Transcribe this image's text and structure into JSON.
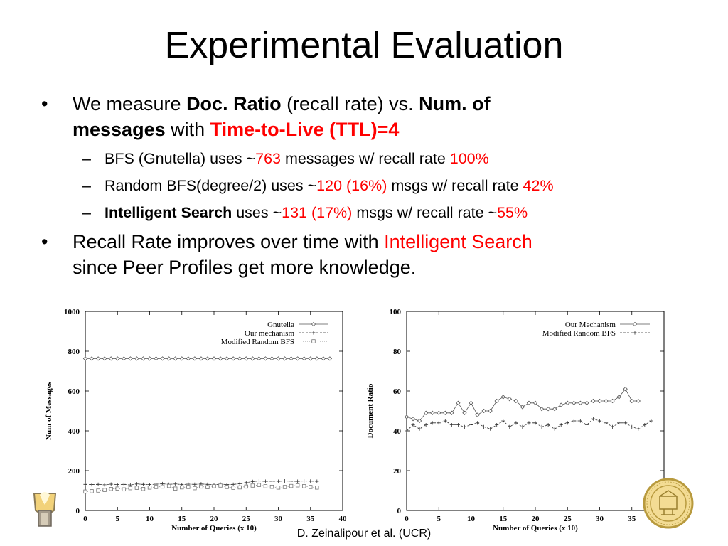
{
  "slide": {
    "title": "Experimental Evaluation",
    "footer": "D. Zeinalipour et al. (UCR)",
    "b1": {
      "t1": "We measure ",
      "t2": "Doc. Ratio",
      "t3": " (recall rate) vs. ",
      "t4": "Num. of",
      "t5": "messages",
      "t6": " with ",
      "t7": "Time-to-Live (TTL)=4"
    },
    "s1": {
      "t1": "BFS (Gnutella) uses ~",
      "t2": "763",
      "t3": " messages w/ recall rate ",
      "t4": "100%"
    },
    "s2": {
      "t1": "Random BFS(degree/2) uses ~",
      "t2": "120 (16%)",
      "t3": " msgs w/ recall rate ",
      "t4": "42%"
    },
    "s3": {
      "t1": "Intelligent Search",
      "t2": " uses ~",
      "t3": "131 (17%)",
      "t4": " msgs w/ recall rate ~",
      "t5": "55%"
    },
    "b2": {
      "t1": "Recall Rate improves over time with ",
      "t2": "Intelligent Search",
      "t3": "since Peer Profiles get more knowledge."
    },
    "bullet": "•",
    "dash": "–",
    "colors": {
      "highlight": "#ff0000",
      "text": "#000000",
      "background": "#ffffff"
    },
    "logo_left": "ucr-torch-logo",
    "seal_right": "university-seal"
  },
  "chart_data": [
    {
      "type": "line",
      "xlabel": "Number of Queries (x 10)",
      "ylabel": "Num of Messages",
      "xlim": [
        0,
        40
      ],
      "ylim": [
        0,
        1000
      ],
      "xticks": [
        0,
        5,
        10,
        15,
        20,
        25,
        30,
        35,
        40
      ],
      "yticks": [
        0,
        200,
        400,
        600,
        800,
        1000
      ],
      "legend_position": "top-right",
      "series": [
        {
          "name": "Gnutella",
          "marker": "diamond",
          "dash": "solid",
          "values": [
            763,
            763,
            763,
            763,
            763,
            763,
            763,
            763,
            763,
            763,
            763,
            763,
            763,
            763,
            763,
            763,
            763,
            763,
            763,
            763,
            763,
            763,
            763,
            763,
            763,
            763,
            763,
            763,
            763,
            763,
            763,
            763,
            763,
            763,
            763,
            763,
            763,
            763,
            763
          ]
        },
        {
          "name": "Our mechanism",
          "marker": "plus",
          "dash": "dashed",
          "values": [
            131,
            130,
            131,
            129,
            132,
            130,
            131,
            128,
            133,
            131,
            130,
            132,
            134,
            131,
            133,
            130,
            132,
            131,
            133,
            131,
            129,
            132,
            130,
            131,
            134,
            140,
            145,
            148,
            146,
            147,
            146,
            148,
            147,
            146,
            148,
            147,
            146
          ]
        },
        {
          "name": "Modified Random BFS",
          "marker": "square",
          "dash": "dotted",
          "values": [
            95,
            97,
            100,
            103,
            108,
            110,
            106,
            112,
            114,
            108,
            115,
            118,
            120,
            123,
            110,
            116,
            118,
            112,
            120,
            117,
            122,
            125,
            118,
            114,
            116,
            120,
            125,
            128,
            122,
            119,
            115,
            118,
            123,
            126,
            122,
            118,
            115
          ]
        }
      ]
    },
    {
      "type": "line",
      "xlabel": "Number of Queries (x 10)",
      "ylabel": "Document Ratio",
      "xlim": [
        0,
        40
      ],
      "ylim": [
        0,
        100
      ],
      "xticks": [
        0,
        5,
        10,
        15,
        20,
        25,
        30,
        35,
        40
      ],
      "yticks": [
        0,
        20,
        40,
        60,
        80,
        100
      ],
      "legend_position": "top-right",
      "series": [
        {
          "name": "Our Mechanism",
          "marker": "diamond",
          "dash": "solid",
          "values": [
            47,
            46,
            45,
            49,
            49,
            49,
            49,
            49,
            54,
            49,
            54,
            48,
            50,
            50,
            55,
            57,
            56,
            55,
            52,
            54,
            54,
            51,
            51,
            51,
            53,
            54,
            54,
            54,
            54,
            55,
            55,
            55,
            55,
            57,
            61,
            55,
            55
          ]
        },
        {
          "name": "Modified Random BFS",
          "marker": "plus",
          "dash": "dashed",
          "values": [
            40,
            43,
            41,
            43,
            44,
            44,
            45,
            43,
            43,
            42,
            43,
            44,
            42,
            41,
            43,
            45,
            42,
            44,
            42,
            44,
            44,
            42,
            43,
            41,
            43,
            44,
            45,
            45,
            43,
            46,
            45,
            44,
            42,
            44,
            44,
            42,
            41,
            43,
            45
          ]
        }
      ]
    }
  ]
}
